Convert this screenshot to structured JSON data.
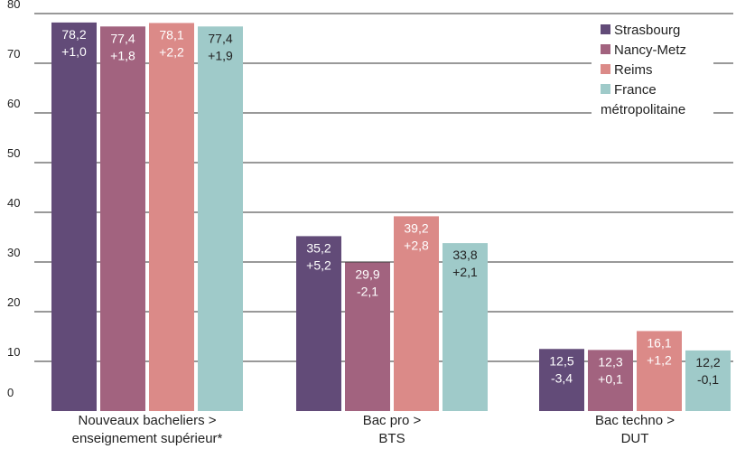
{
  "chart_data": {
    "type": "bar",
    "categories": [
      [
        "Nouveaux bacheliers >",
        "enseignement supérieur*"
      ],
      [
        "Bac pro >",
        "BTS"
      ],
      [
        "Bac techno >",
        "DUT"
      ]
    ],
    "series": [
      {
        "name": "Strasbourg",
        "values": [
          78.2,
          35.2,
          12.5
        ],
        "labels": [
          "78,2",
          "35,2",
          "12,5"
        ],
        "changes": [
          "+1,0",
          "+5,2",
          "-3,4"
        ],
        "color": "#624b78"
      },
      {
        "name": "Nancy-Metz",
        "values": [
          77.4,
          29.9,
          12.3
        ],
        "labels": [
          "77,4",
          "29,9",
          "12,3"
        ],
        "changes": [
          "+1,8",
          "-2,1",
          "+0,1"
        ],
        "color": "#a2637f"
      },
      {
        "name": "Reims",
        "values": [
          78.1,
          39.2,
          16.1
        ],
        "labels": [
          "78,1",
          "39,2",
          "16,1"
        ],
        "changes": [
          "+2,2",
          "+2,8",
          "+1,2"
        ],
        "color": "#db8a88"
      },
      {
        "name": "France métropolitaine",
        "name_lines": [
          "France",
          "métropolitaine"
        ],
        "values": [
          77.4,
          33.8,
          12.2
        ],
        "labels": [
          "77,4",
          "33,8",
          "12,2"
        ],
        "changes": [
          "+1,9",
          "+2,1",
          "-0,1"
        ],
        "color": "#9fcac9"
      }
    ],
    "yticks": [
      "0",
      "10",
      "20",
      "30",
      "40",
      "50",
      "60",
      "70",
      "80"
    ],
    "ylim": [
      0,
      80
    ],
    "grid": true,
    "legend_position": "top-right",
    "label_color_light": "#ffffff",
    "label_color_dark": "#222222"
  }
}
